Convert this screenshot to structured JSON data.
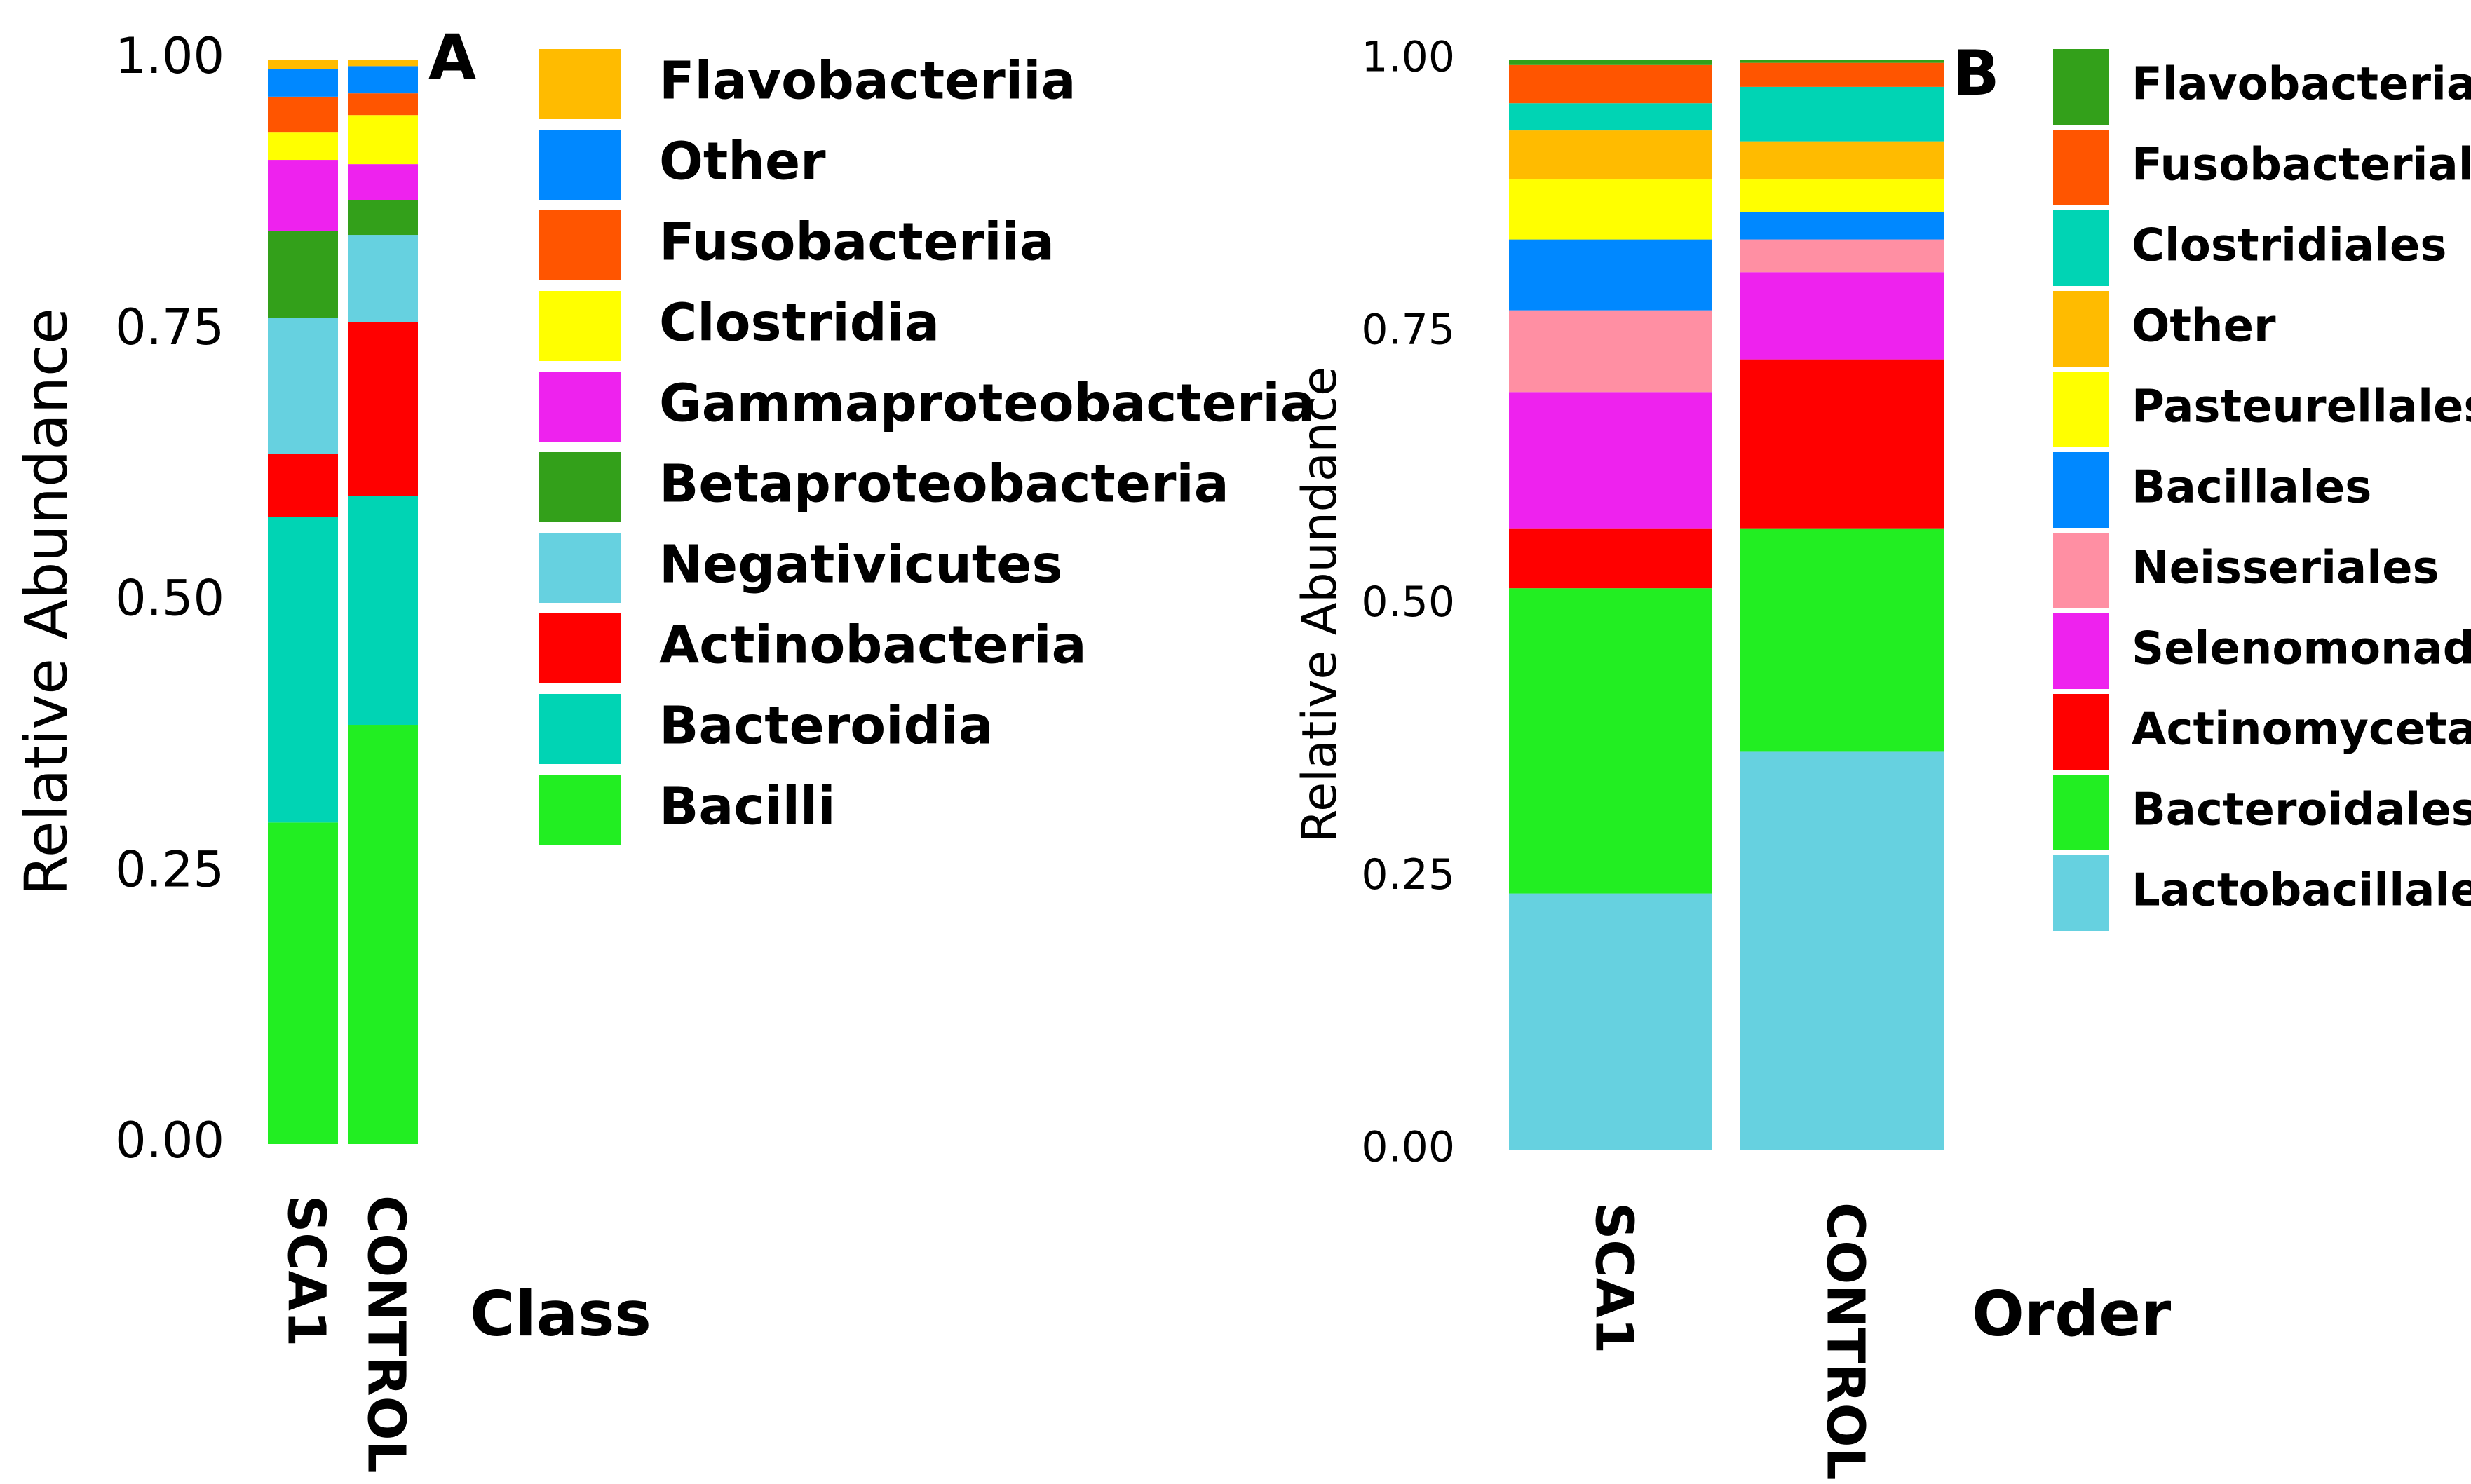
{
  "chart_data": [
    {
      "type": "bar",
      "stacked": true,
      "panel_label": "A",
      "legend_title": "Class",
      "categories": [
        "SCA1",
        "CONTROL"
      ],
      "ylabel": "Relative Abundance",
      "ylim": [
        0,
        1
      ],
      "yticks": [
        "0.00",
        "0.25",
        "0.50",
        "0.75",
        "1.00"
      ],
      "series": [
        {
          "name": "Bacilli",
          "color": "#22ee22",
          "values": [
            0.295,
            0.385
          ]
        },
        {
          "name": "Bacteroidia",
          "color": "#00d4b4",
          "values": [
            0.28,
            0.21
          ]
        },
        {
          "name": "Actinobacteria",
          "color": "#ff0000",
          "values": [
            0.058,
            0.16
          ]
        },
        {
          "name": "Negativicutes",
          "color": "#66d1e0",
          "values": [
            0.125,
            0.08
          ]
        },
        {
          "name": "Betaproteobacteria",
          "color": "#33a01a",
          "values": [
            0.08,
            0.032
          ]
        },
        {
          "name": "Gammaproteobacteria",
          "color": "#ee22ee",
          "values": [
            0.065,
            0.033
          ]
        },
        {
          "name": "Clostridia",
          "color": "#ffff00",
          "values": [
            0.025,
            0.045
          ]
        },
        {
          "name": "Fusobacteriia",
          "color": "#ff5500",
          "values": [
            0.033,
            0.02
          ]
        },
        {
          "name": "Other",
          "color": "#0088ff",
          "values": [
            0.025,
            0.025
          ]
        },
        {
          "name": "Flavobacteriia",
          "color": "#ffbb00",
          "values": [
            0.009,
            0.006
          ]
        }
      ],
      "legend_order": [
        "Flavobacteriia",
        "Other",
        "Fusobacteriia",
        "Clostridia",
        "Gammaproteobacteria",
        "Betaproteobacteria",
        "Negativicutes",
        "Actinobacteria",
        "Bacteroidia",
        "Bacilli"
      ]
    },
    {
      "type": "bar",
      "stacked": true,
      "panel_label": "B",
      "legend_title": "Order",
      "categories": [
        "SCA1",
        "CONTROL"
      ],
      "ylabel": "Relative Abundance",
      "ylim": [
        0,
        1
      ],
      "yticks": [
        "0.00",
        "0.25",
        "0.50",
        "0.75",
        "1.00"
      ],
      "series": [
        {
          "name": "Lactobacillales",
          "color": "#66d1e0",
          "values": [
            0.235,
            0.365
          ]
        },
        {
          "name": "Bacteroidales",
          "color": "#22ee22",
          "values": [
            0.28,
            0.205
          ]
        },
        {
          "name": "Actinomycetales",
          "color": "#ff0000",
          "values": [
            0.055,
            0.155
          ]
        },
        {
          "name": "Selenomonadales",
          "color": "#ee22ee",
          "values": [
            0.125,
            0.08
          ]
        },
        {
          "name": "Neisseriales",
          "color": "#ff8fa3",
          "values": [
            0.075,
            0.03
          ]
        },
        {
          "name": "Bacillales",
          "color": "#0088ff",
          "values": [
            0.065,
            0.025
          ]
        },
        {
          "name": "Pasteurellales",
          "color": "#ffff00",
          "values": [
            0.055,
            0.03
          ]
        },
        {
          "name": "Other",
          "color": "#ffbb00",
          "values": [
            0.045,
            0.035
          ]
        },
        {
          "name": "Clostridiales",
          "color": "#00d4b4",
          "values": [
            0.025,
            0.05
          ]
        },
        {
          "name": "Fusobacteriales",
          "color": "#ff5500",
          "values": [
            0.035,
            0.022
          ]
        },
        {
          "name": "Flavobacteriales",
          "color": "#33a01a",
          "values": [
            0.005,
            0.003
          ]
        }
      ],
      "legend_order": [
        "Flavobacteriales",
        "Fusobacteriales",
        "Clostridiales",
        "Other",
        "Pasteurellales",
        "Bacillales",
        "Neisseriales",
        "Selenomonadales",
        "Actinomycetales",
        "Bacteroidales",
        "Lactobacillales"
      ]
    }
  ]
}
